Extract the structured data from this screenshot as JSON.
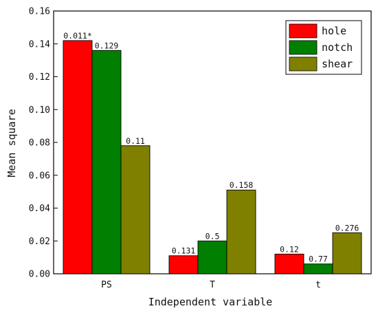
{
  "chart_data": {
    "type": "bar",
    "categories": [
      "PS",
      "T",
      "t"
    ],
    "series": [
      {
        "name": "hole",
        "color": "#ff0000",
        "values": [
          0.142,
          0.011,
          0.012
        ],
        "labels": [
          "0.011*",
          "0.131",
          "0.12"
        ]
      },
      {
        "name": "notch",
        "color": "#007f00",
        "values": [
          0.136,
          0.02,
          0.006
        ],
        "labels": [
          "0.129",
          "0.5",
          "0.77"
        ]
      },
      {
        "name": "shear",
        "color": "#808000",
        "values": [
          0.078,
          0.051,
          0.025
        ],
        "labels": [
          "0.11",
          "0.158",
          "0.276"
        ]
      }
    ],
    "xlabel": "Independent variable",
    "ylabel": "Mean square",
    "ylim": [
      0,
      0.16
    ],
    "yticks": [
      "0.00",
      "0.02",
      "0.04",
      "0.06",
      "0.08",
      "0.10",
      "0.12",
      "0.14",
      "0.16"
    ],
    "grid": false,
    "legend_position": "top-right"
  }
}
